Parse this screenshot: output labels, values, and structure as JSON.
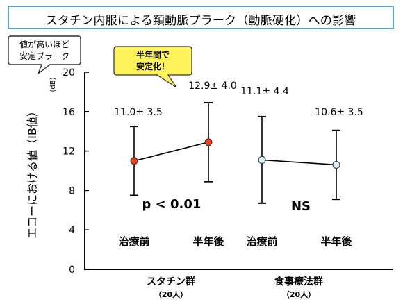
{
  "title": "スタチン内服による頚動脈プラーク（動脈硬化）への影響",
  "callouts": {
    "left_line1": "値が高いほど",
    "left_line2": "安定プラーク",
    "center_line1": "半年間で",
    "center_line2": "安定化！"
  },
  "colors": {
    "statin_marker": "#e8401c",
    "diet_marker": "#d8f0f8",
    "title_border": "#5ca3d6",
    "callout_fill": "#fff45c",
    "axis": "#000000"
  },
  "chart_data": {
    "type": "line",
    "ylabel": "エコーにおける値（IB値）",
    "yunit": "(dB)",
    "ylim": [
      0,
      20
    ],
    "yticks": [
      0,
      4,
      8,
      12,
      16,
      20
    ],
    "groups": [
      {
        "name": "スタチン群",
        "n": "（20人）"
      },
      {
        "name": "食事療法群",
        "n": "（20人）"
      }
    ],
    "categories": [
      "治療前",
      "半年後",
      "治療前",
      "半年後"
    ],
    "series": [
      {
        "group": "スタチン群",
        "x": [
          "治療前",
          "半年後"
        ],
        "values": [
          11.0,
          12.9
        ],
        "sd": [
          3.5,
          4.0
        ],
        "labels": [
          "11.0± 3.5",
          "12.9± 4.0"
        ],
        "marker_color": "#e8401c",
        "stat": "p < 0.01"
      },
      {
        "group": "食事療法群",
        "x": [
          "治療前",
          "半年後"
        ],
        "values": [
          11.1,
          10.6
        ],
        "sd": [
          4.4,
          3.5
        ],
        "labels": [
          "11.1± 4.4",
          "10.6± 3.5"
        ],
        "marker_color": "#d8f0f8",
        "stat": "NS"
      }
    ],
    "grid": false,
    "legend": "none"
  }
}
